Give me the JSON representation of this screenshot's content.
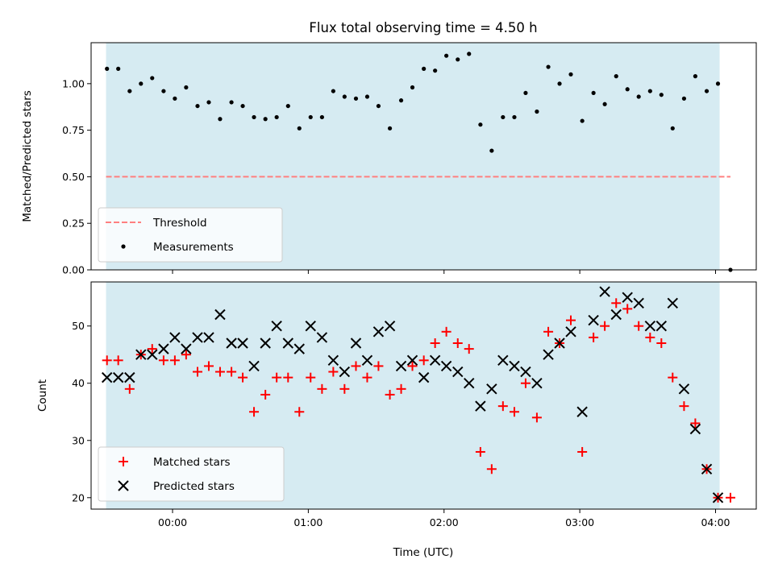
{
  "chart_data": [
    {
      "type": "scatter",
      "title": "Flux total observing time = 4.50 h",
      "ylabel": "Matched/Predicted stars",
      "xlabel": "",
      "xlim": [
        -0.6,
        4.3
      ],
      "ylim": [
        0.0,
        1.22
      ],
      "yticks": [
        "0.00",
        "0.25",
        "0.50",
        "0.75",
        "1.00"
      ],
      "shade": {
        "color": "#add8e6",
        "x_start": -0.49,
        "x_end": 4.03
      },
      "threshold": {
        "name": "Threshold",
        "value": 0.5,
        "x_start": -0.49,
        "x_end": 4.11,
        "color": "#ff7f7f"
      },
      "legend_position": "lower-left",
      "series": [
        {
          "name": "Measurements",
          "color": "#000000",
          "marker": "dot",
          "x": [
            -0.483,
            -0.4,
            -0.316,
            -0.233,
            -0.15,
            -0.066,
            0.017,
            0.1,
            0.184,
            0.267,
            0.35,
            0.434,
            0.517,
            0.6,
            0.684,
            0.767,
            0.851,
            0.934,
            1.017,
            1.101,
            1.184,
            1.267,
            1.351,
            1.434,
            1.517,
            1.601,
            1.684,
            1.767,
            1.851,
            1.934,
            2.017,
            2.101,
            2.184,
            2.268,
            2.351,
            2.434,
            2.518,
            2.601,
            2.684,
            2.768,
            2.851,
            2.934,
            3.018,
            3.101,
            3.184,
            3.268,
            3.351,
            3.434,
            3.518,
            3.601,
            3.684,
            3.768,
            3.851,
            3.935,
            4.018,
            4.11
          ],
          "y": [
            1.08,
            1.08,
            0.96,
            1.0,
            1.03,
            0.96,
            0.92,
            0.98,
            0.88,
            0.9,
            0.81,
            0.9,
            0.88,
            0.82,
            0.81,
            0.82,
            0.88,
            0.76,
            0.82,
            0.82,
            0.96,
            0.93,
            0.92,
            0.93,
            0.88,
            0.76,
            0.91,
            0.98,
            1.08,
            1.07,
            1.15,
            1.13,
            1.16,
            0.78,
            0.64,
            0.82,
            0.82,
            0.95,
            0.85,
            1.09,
            1.0,
            1.05,
            0.8,
            0.95,
            0.89,
            1.04,
            0.97,
            0.93,
            0.96,
            0.94,
            0.76,
            0.92,
            1.04,
            0.96,
            1.0,
            0.0
          ]
        }
      ]
    },
    {
      "type": "scatter",
      "title": "",
      "ylabel": "Count",
      "xlabel": "Time (UTC)",
      "xlim": [
        -0.6,
        4.3
      ],
      "ylim": [
        18,
        57.7
      ],
      "yticks": [
        "20",
        "30",
        "40",
        "50"
      ],
      "xticks": [
        "00:00",
        "01:00",
        "02:00",
        "03:00",
        "04:00"
      ],
      "shade": {
        "color": "#add8e6",
        "x_start": -0.49,
        "x_end": 4.03
      },
      "legend_position": "lower-left",
      "series": [
        {
          "name": "Matched stars",
          "color": "#ff0000",
          "marker": "plus",
          "x": [
            -0.483,
            -0.4,
            -0.316,
            -0.233,
            -0.15,
            -0.066,
            0.017,
            0.1,
            0.184,
            0.267,
            0.35,
            0.434,
            0.517,
            0.6,
            0.684,
            0.767,
            0.851,
            0.934,
            1.017,
            1.101,
            1.184,
            1.267,
            1.351,
            1.434,
            1.517,
            1.601,
            1.684,
            1.767,
            1.851,
            1.934,
            2.017,
            2.101,
            2.184,
            2.268,
            2.351,
            2.434,
            2.518,
            2.601,
            2.684,
            2.768,
            2.851,
            2.934,
            3.018,
            3.101,
            3.184,
            3.268,
            3.351,
            3.434,
            3.518,
            3.601,
            3.684,
            3.768,
            3.851,
            3.935,
            4.018,
            4.11
          ],
          "y": [
            44,
            44,
            39,
            45,
            46,
            44,
            44,
            45,
            42,
            43,
            42,
            42,
            41,
            35,
            38,
            41,
            41,
            35,
            41,
            39,
            42,
            39,
            43,
            41,
            43,
            38,
            39,
            43,
            44,
            47,
            49,
            47,
            46,
            28,
            25,
            36,
            35,
            40,
            34,
            49,
            47,
            51,
            28,
            48,
            50,
            54,
            53,
            50,
            48,
            47,
            41,
            36,
            33,
            25,
            20,
            20
          ]
        },
        {
          "name": "Predicted stars",
          "color": "#000000",
          "marker": "x",
          "x": [
            -0.483,
            -0.4,
            -0.316,
            -0.233,
            -0.15,
            -0.066,
            0.017,
            0.1,
            0.184,
            0.267,
            0.35,
            0.434,
            0.517,
            0.6,
            0.684,
            0.767,
            0.851,
            0.934,
            1.017,
            1.101,
            1.184,
            1.267,
            1.351,
            1.434,
            1.517,
            1.601,
            1.684,
            1.767,
            1.851,
            1.934,
            2.017,
            2.101,
            2.184,
            2.268,
            2.351,
            2.434,
            2.518,
            2.601,
            2.684,
            2.768,
            2.851,
            2.934,
            3.018,
            3.101,
            3.184,
            3.268,
            3.351,
            3.434,
            3.518,
            3.601,
            3.684,
            3.768,
            3.851,
            3.935,
            4.018
          ],
          "y": [
            41,
            41,
            41,
            45,
            45,
            46,
            48,
            46,
            48,
            48,
            52,
            47,
            47,
            43,
            47,
            50,
            47,
            46,
            50,
            48,
            44,
            42,
            47,
            44,
            49,
            50,
            43,
            44,
            41,
            44,
            43,
            42,
            40,
            36,
            39,
            44,
            43,
            42,
            40,
            45,
            47,
            49,
            35,
            51,
            56,
            52,
            55,
            54,
            50,
            50,
            54,
            39,
            32,
            25,
            20
          ]
        }
      ]
    }
  ]
}
